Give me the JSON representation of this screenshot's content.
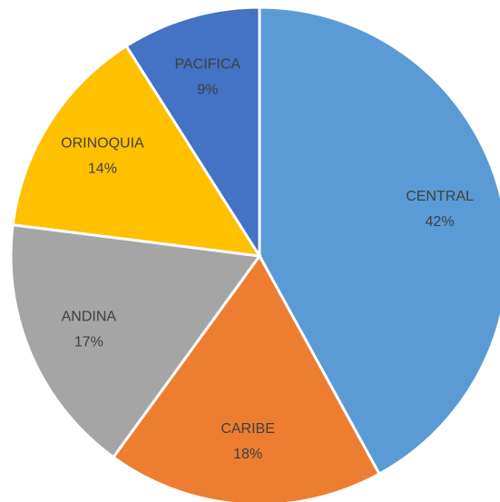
{
  "chart_data": {
    "type": "pie",
    "categories": [
      "CENTRAL",
      "CARIBE",
      "ANDINA",
      "ORINOQUIA",
      "PACIFICA"
    ],
    "values": [
      42,
      18,
      17,
      14,
      9
    ],
    "value_labels": [
      "42%",
      "18%",
      "17%",
      "14%",
      "9%"
    ],
    "colors": [
      "#5b9bd5",
      "#ed7d31",
      "#a5a5a5",
      "#ffc000",
      "#4472c4"
    ]
  }
}
